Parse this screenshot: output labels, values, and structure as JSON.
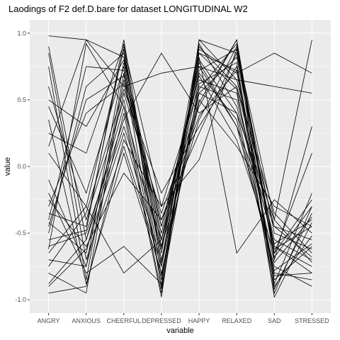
{
  "chart_data": {
    "type": "line",
    "title": "Laodings of F2 def.D.bare for dataset LONGITUDINAL W2",
    "xlabel": "variable",
    "ylabel": "value",
    "categories": [
      "ANGRY",
      "ANXIOUS",
      "CHEERFUL",
      "DEPRESSED",
      "HAPPY",
      "RELAXED",
      "SAD",
      "STRESSED"
    ],
    "ylim": [
      -1.1,
      1.1
    ],
    "yticks": [
      1.0,
      0.5,
      0.0,
      -0.5,
      -1.0
    ],
    "ytick_labels": [
      "1.0",
      "0.5",
      "0.0",
      "-0.5",
      "-1.0"
    ],
    "grid": true,
    "panel_color": "#ebebeb",
    "grid_color": "#ffffff",
    "line_color": "#000000",
    "series": [
      {
        "values": [
          0.98,
          0.95,
          0.82,
          -0.55,
          0.72,
          0.88,
          -0.62,
          -0.45
        ]
      },
      {
        "values": [
          -0.55,
          -0.48,
          0.95,
          -0.75,
          0.85,
          0.72,
          -0.85,
          -0.6
        ]
      },
      {
        "values": [
          -0.62,
          0.92,
          0.45,
          -0.62,
          0.65,
          0.55,
          -0.72,
          -0.38
        ]
      },
      {
        "values": [
          0.75,
          -0.85,
          0.7,
          -0.9,
          0.9,
          0.6,
          -0.55,
          -0.7
        ]
      },
      {
        "values": [
          -0.42,
          -0.65,
          0.55,
          -0.35,
          0.45,
          0.95,
          -0.9,
          -0.52
        ]
      },
      {
        "values": [
          -0.88,
          -0.55,
          0.3,
          -0.55,
          0.8,
          0.4,
          -0.4,
          0.95
        ]
      },
      {
        "values": [
          0.1,
          -0.3,
          0.88,
          -0.82,
          0.55,
          0.82,
          -0.65,
          -0.25
        ]
      },
      {
        "values": [
          -0.3,
          0.4,
          0.62,
          -0.45,
          0.7,
          0.35,
          -0.8,
          -0.85
        ]
      },
      {
        "values": [
          -0.7,
          -0.75,
          0.4,
          -0.98,
          0.95,
          0.65,
          -0.45,
          -0.55
        ]
      },
      {
        "values": [
          0.45,
          -0.2,
          0.75,
          -0.6,
          0.35,
          0.9,
          -0.95,
          -0.3
        ]
      },
      {
        "values": [
          -0.95,
          -0.9,
          0.2,
          -0.3,
          0.6,
          0.5,
          -0.6,
          -0.75
        ]
      },
      {
        "values": [
          -0.5,
          0.6,
          0.85,
          -0.7,
          0.5,
          0.15,
          -0.3,
          -0.45
        ]
      },
      {
        "values": [
          0.6,
          -0.4,
          0.5,
          -0.85,
          0.88,
          0.7,
          0.85,
          0.7
        ]
      },
      {
        "values": [
          -0.25,
          -0.6,
          -0.05,
          -0.4,
          0.25,
          0.85,
          -0.5,
          -0.62
        ]
      },
      {
        "values": [
          -0.8,
          -0.95,
          0.65,
          -0.5,
          0.75,
          0.3,
          -0.75,
          -0.9
        ]
      },
      {
        "values": [
          0.25,
          0.1,
          0.92,
          -0.92,
          0.62,
          0.78,
          -0.88,
          -0.2
        ]
      },
      {
        "values": [
          -0.6,
          -0.5,
          0.35,
          0.85,
          0.4,
          0.6,
          -0.35,
          -0.65
        ]
      },
      {
        "values": [
          -0.4,
          0.75,
          0.72,
          -0.65,
          0.92,
          0.45,
          -0.58,
          -0.4
        ]
      },
      {
        "values": [
          0.85,
          -0.7,
          0.15,
          -0.75,
          0.58,
          0.92,
          -0.7,
          0.3
        ]
      },
      {
        "values": [
          -0.75,
          -0.35,
          0.58,
          -0.2,
          0.3,
          0.75,
          -0.82,
          -0.8
        ]
      },
      {
        "values": [
          -0.2,
          -0.8,
          -0.6,
          -0.88,
          0.82,
          -0.65,
          -0.25,
          -0.5
        ]
      },
      {
        "values": [
          0.5,
          0.3,
          0.8,
          -0.45,
          0.68,
          0.2,
          -0.65,
          0.1
        ]
      },
      {
        "values": [
          -0.9,
          -0.62,
          0.25,
          -0.72,
          0.85,
          0.58,
          -0.92,
          -0.35
        ]
      },
      {
        "values": [
          -0.35,
          -0.45,
          0.9,
          -0.3,
          0.05,
          0.88,
          -0.4,
          -0.72
        ]
      },
      {
        "values": [
          0.15,
          0.95,
          0.6,
          0.7,
          0.75,
          0.65,
          0.6,
          0.55
        ]
      },
      {
        "values": [
          -0.65,
          -0.3,
          -0.8,
          -0.55,
          0.55,
          0.4,
          -0.78,
          -0.58
        ]
      },
      {
        "values": [
          0.9,
          -0.55,
          0.45,
          -0.95,
          0.95,
          0.85,
          -0.6,
          -0.8
        ]
      },
      {
        "values": [
          -0.45,
          0.5,
          0.68,
          -0.4,
          0.38,
          0.72,
          -0.98,
          -0.42
        ]
      },
      {
        "values": [
          -0.1,
          -0.75,
          0.78,
          -0.6,
          0.78,
          0.3,
          -0.45,
          -0.68
        ]
      },
      {
        "values": [
          0.35,
          -0.88,
          0.1,
          -0.8,
          0.48,
          0.95,
          -0.68,
          -0.3
        ]
      }
    ]
  }
}
